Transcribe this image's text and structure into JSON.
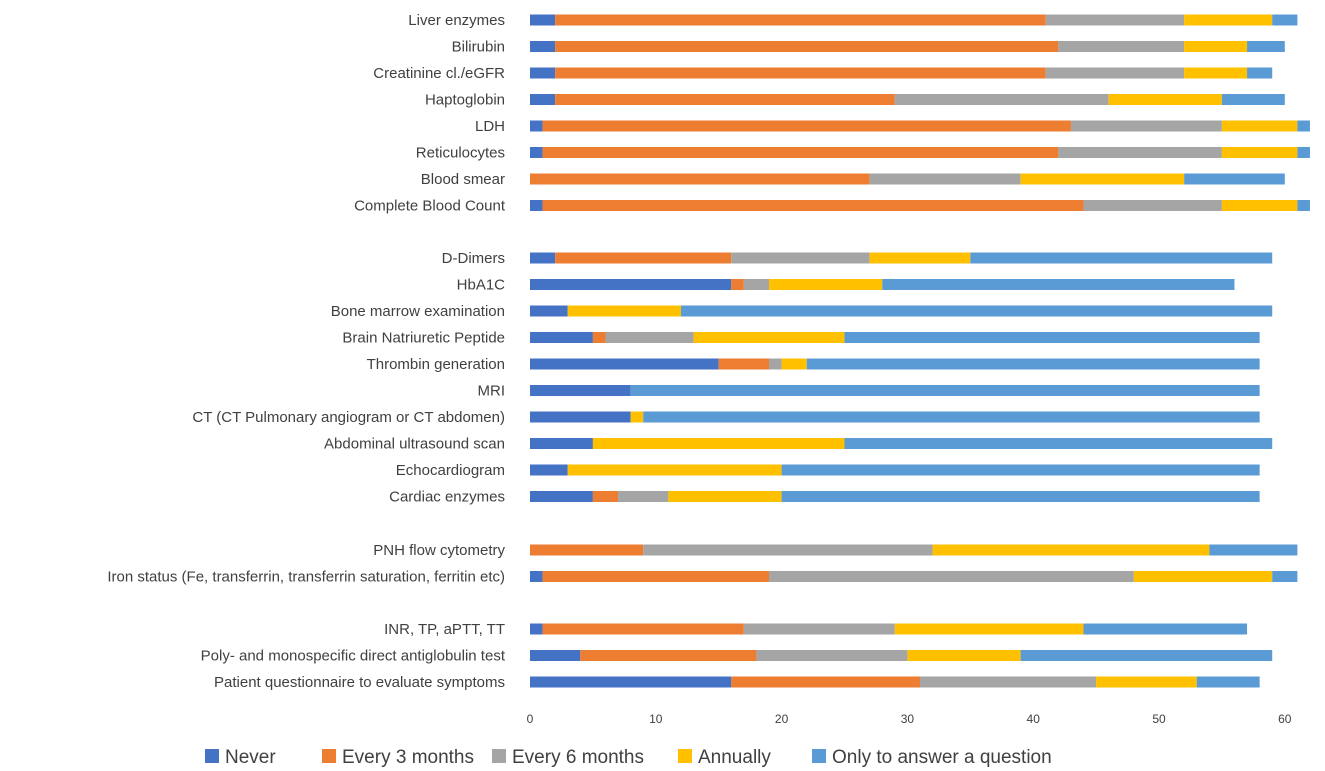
{
  "chart_data": {
    "type": "bar",
    "orientation": "horizontal",
    "stacked": true,
    "title": "",
    "xlabel": "",
    "ylabel": "",
    "xlim": [
      0,
      62
    ],
    "xticks": [
      0,
      10,
      20,
      30,
      40,
      50,
      60
    ],
    "grid": false,
    "legend_position": "bottom",
    "categories": [
      "Liver enzymes",
      "Bilirubin",
      "Creatinine cl./eGFR",
      "Haptoglobin",
      "LDH",
      "Reticulocytes",
      "Blood smear",
      "Complete Blood Count",
      "D-Dimers",
      "HbA1C",
      "Bone marrow examination",
      "Brain Natriuretic Peptide",
      "Thrombin generation",
      "MRI",
      "CT (CT Pulmonary angiogram or CT abdomen)",
      "Abdominal ultrasound scan",
      "Echocardiogram",
      "Cardiac enzymes",
      "PNH flow cytometry",
      "Iron status (Fe, transferrin, transferrin saturation, ferritin etc)",
      "INR, TP, aPTT, TT",
      "Poly- and monospecific direct antiglobulin test",
      "Patient questionnaire to evaluate symptoms"
    ],
    "groups": [
      8,
      10,
      2,
      3
    ],
    "series": [
      {
        "name": "Never",
        "color": "#4472C4",
        "values": [
          2,
          2,
          2,
          2,
          1,
          1,
          0,
          1,
          2,
          16,
          3,
          5,
          15,
          8,
          8,
          5,
          3,
          5,
          0,
          1,
          1,
          4,
          16
        ]
      },
      {
        "name": "Every 3 months",
        "color": "#ED7D31",
        "values": [
          39,
          40,
          39,
          27,
          42,
          41,
          27,
          43,
          14,
          1,
          0,
          1,
          4,
          0,
          0,
          0,
          0,
          2,
          9,
          18,
          16,
          14,
          15
        ]
      },
      {
        "name": "Every 6 months",
        "color": "#A5A5A5",
        "values": [
          11,
          10,
          11,
          17,
          12,
          13,
          12,
          11,
          11,
          2,
          0,
          7,
          1,
          0,
          0,
          0,
          0,
          4,
          23,
          29,
          12,
          12,
          14
        ]
      },
      {
        "name": "Annually",
        "color": "#FFC000",
        "values": [
          7,
          5,
          5,
          9,
          6,
          6,
          13,
          6,
          8,
          9,
          9,
          12,
          2,
          0,
          1,
          20,
          17,
          9,
          22,
          11,
          15,
          9,
          8
        ]
      },
      {
        "name": "Only to answer a question",
        "color": "#5B9BD5",
        "values": [
          2,
          3,
          2,
          5,
          1,
          1,
          8,
          1,
          24,
          28,
          47,
          33,
          36,
          50,
          49,
          34,
          38,
          38,
          7,
          2,
          13,
          20,
          5
        ]
      }
    ]
  }
}
